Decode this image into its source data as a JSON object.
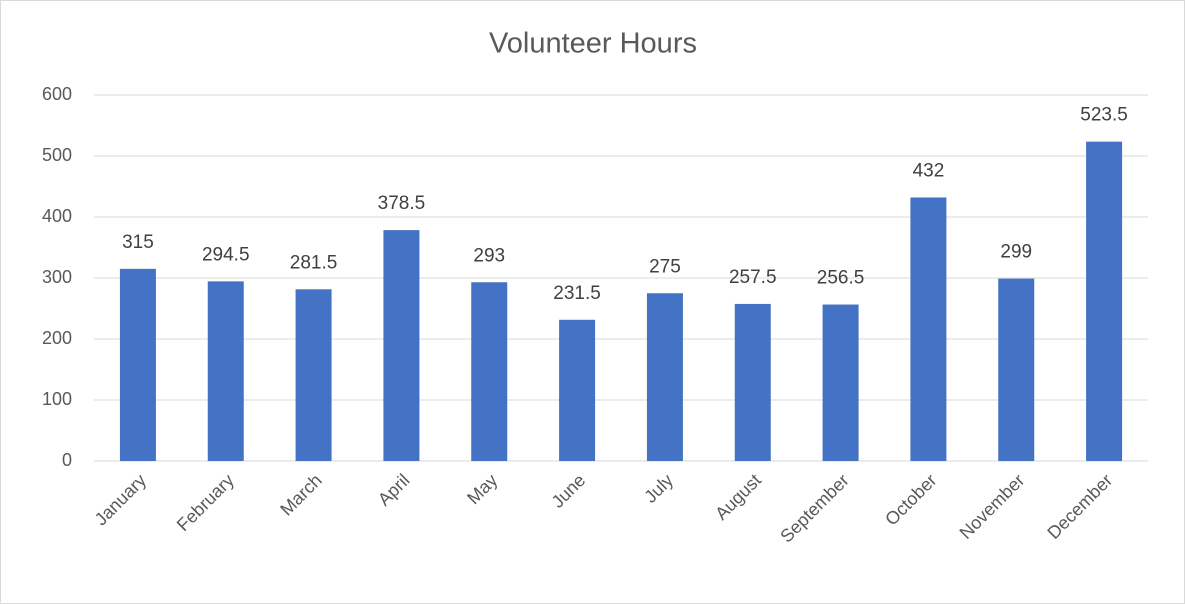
{
  "chart_data": {
    "type": "bar",
    "title": "Volunteer Hours",
    "categories": [
      "January",
      "February",
      "March",
      "April",
      "May",
      "June",
      "July",
      "August",
      "September",
      "October",
      "November",
      "December"
    ],
    "values": [
      315,
      294.5,
      281.5,
      378.5,
      293,
      231.5,
      275,
      257.5,
      256.5,
      432,
      299,
      523.5
    ],
    "color": "#4472c4",
    "ylim": [
      0,
      600
    ],
    "yticks": [
      0,
      100,
      200,
      300,
      400,
      500,
      600
    ],
    "grid": true
  }
}
